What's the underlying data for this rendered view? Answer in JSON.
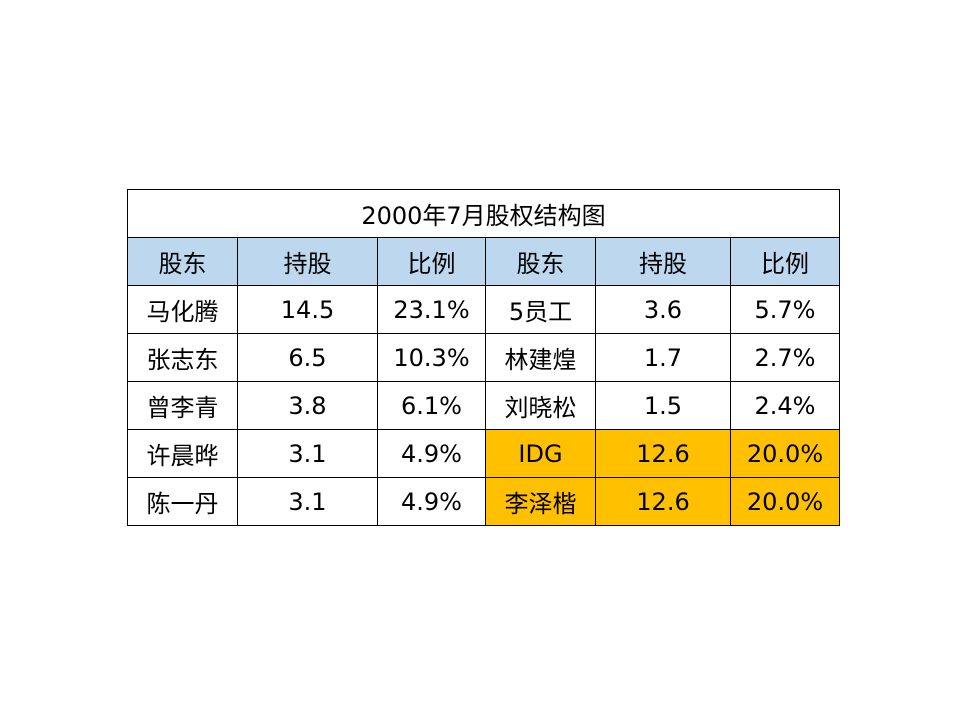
{
  "table": {
    "title": "2000年7月股权结构图",
    "headers": [
      "股东",
      "持股",
      "比例",
      "股东",
      "持股",
      "比例"
    ],
    "rows": [
      {
        "left": {
          "holder": "马化腾",
          "shares": "14.5",
          "ratio": "23.1%"
        },
        "right": {
          "holder": "5员工",
          "shares": "3.6",
          "ratio": "5.7%",
          "highlight": false
        }
      },
      {
        "left": {
          "holder": "张志东",
          "shares": "6.5",
          "ratio": "10.3%"
        },
        "right": {
          "holder": "林建煌",
          "shares": "1.7",
          "ratio": "2.7%",
          "highlight": false
        }
      },
      {
        "left": {
          "holder": "曾李青",
          "shares": "3.8",
          "ratio": "6.1%"
        },
        "right": {
          "holder": "刘晓松",
          "shares": "1.5",
          "ratio": "2.4%",
          "highlight": false
        }
      },
      {
        "left": {
          "holder": "许晨晔",
          "shares": "3.1",
          "ratio": "4.9%"
        },
        "right": {
          "holder": "IDG",
          "shares": "12.6",
          "ratio": "20.0%",
          "highlight": true
        }
      },
      {
        "left": {
          "holder": "陈一丹",
          "shares": "3.1",
          "ratio": "4.9%"
        },
        "right": {
          "holder": "李泽楷",
          "shares": "12.6",
          "ratio": "20.0%",
          "highlight": true
        }
      }
    ]
  },
  "colors": {
    "header_background": "#bdd7ee",
    "highlight_background": "#ffc000",
    "border": "#000000"
  }
}
